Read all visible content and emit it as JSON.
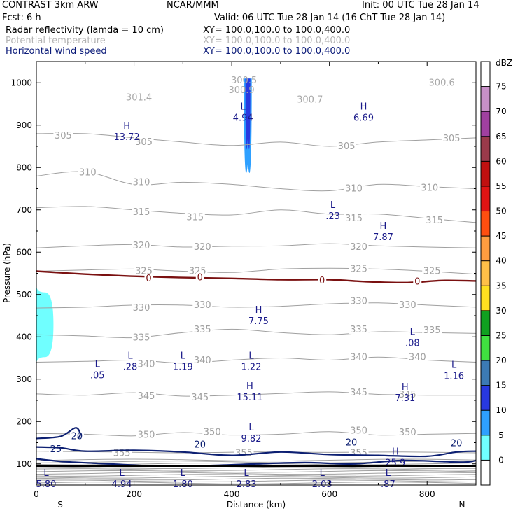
{
  "header": {
    "model": "CONTRAST  3km ARW",
    "source": "NCAR/MMM",
    "init": "Init: 00 UTC Tue 28 Jan 14",
    "fcst": "Fcst:      6 h",
    "valid": "Valid: 06 UTC Tue 28 Jan 14 (16 ChT Tue 28 Jan 14)",
    "fields": [
      {
        "name": "Radar reflectivity (lamda = 10 cm)",
        "xy": "XY= 100.0,100.0 to 100.0,400.0",
        "color": "#000000"
      },
      {
        "name": "Potential temperature",
        "xy": "XY= 100.0,100.0 to 100.0,400.0",
        "color": "#b4b4b4"
      },
      {
        "name": "Horizontal wind speed",
        "xy": "XY= 100.0,100.0 to 100.0,400.0",
        "color": "#0a1a78"
      }
    ]
  },
  "colors": {
    "theta": "#a0a0a0",
    "wind": "#0c1f72",
    "freezing": "#7a1010",
    "hl": "#1a1a8a",
    "hl_gray": "#a8a8a8"
  },
  "chart_data": {
    "type": "cross-section",
    "xlabel": "Distance (km)",
    "ylabel": "Pressure (hPa)",
    "xlim": [
      0,
      900
    ],
    "ylim": [
      1050,
      50
    ],
    "x_ticks": [
      0,
      200,
      400,
      600,
      800
    ],
    "y_ticks": [
      100,
      200,
      300,
      400,
      500,
      600,
      700,
      800,
      900,
      1000
    ],
    "left_end_label": "S",
    "right_end_label": "N",
    "colorbar": {
      "title": "dBZ",
      "levels": [
        "75",
        "70",
        "65",
        "60",
        "55",
        "50",
        "45",
        "40",
        "35",
        "30",
        "25",
        "20",
        "15",
        "10",
        "5",
        "0"
      ],
      "colors": [
        "#ffffff",
        "#c890c8",
        "#a040a0",
        "#9a3a4a",
        "#c01010",
        "#e01414",
        "#ff4e10",
        "#ff9d40",
        "#ffc048",
        "#ffe020",
        "#10a020",
        "#40e040",
        "#3c7ab4",
        "#2838e0",
        "#2ea0ff",
        "#70ffff",
        "#ffffff"
      ]
    },
    "theta_contours": [
      {
        "value": 355,
        "points": [
          [
            0,
            130
          ],
          [
            150,
            128
          ],
          [
            300,
            126
          ],
          [
            450,
            128
          ],
          [
            600,
            127
          ],
          [
            750,
            128
          ],
          [
            900,
            126
          ]
        ],
        "labels": [
          [
            175,
            125
          ],
          [
            425,
            125
          ],
          [
            660,
            125
          ]
        ]
      },
      {
        "value": 350,
        "points": [
          [
            0,
            172
          ],
          [
            100,
            170
          ],
          [
            200,
            166
          ],
          [
            300,
            174
          ],
          [
            400,
            168
          ],
          [
            500,
            170
          ],
          [
            600,
            176
          ],
          [
            700,
            168
          ],
          [
            800,
            170
          ],
          [
            900,
            172
          ]
        ],
        "labels": [
          [
            225,
            168
          ],
          [
            360,
            175
          ],
          [
            660,
            178
          ],
          [
            760,
            174
          ]
        ]
      },
      {
        "value": 345,
        "points": [
          [
            0,
            265
          ],
          [
            100,
            262
          ],
          [
            200,
            268
          ],
          [
            300,
            260
          ],
          [
            400,
            262
          ],
          [
            500,
            266
          ],
          [
            600,
            270
          ],
          [
            700,
            264
          ],
          [
            800,
            262
          ],
          [
            900,
            262
          ]
        ],
        "labels": [
          [
            225,
            260
          ],
          [
            335,
            257
          ],
          [
            660,
            268
          ],
          [
            760,
            263
          ]
        ]
      },
      {
        "value": 340,
        "points": [
          [
            0,
            340
          ],
          [
            100,
            342
          ],
          [
            200,
            345
          ],
          [
            300,
            338
          ],
          [
            400,
            345
          ],
          [
            500,
            350
          ],
          [
            600,
            345
          ],
          [
            700,
            352
          ],
          [
            800,
            345
          ],
          [
            900,
            340
          ]
        ],
        "labels": [
          [
            225,
            335
          ],
          [
            340,
            344
          ],
          [
            660,
            352
          ],
          [
            780,
            352
          ]
        ]
      },
      {
        "value": 335,
        "points": [
          [
            0,
            405
          ],
          [
            100,
            402
          ],
          [
            200,
            398
          ],
          [
            300,
            410
          ],
          [
            400,
            418
          ],
          [
            500,
            410
          ],
          [
            600,
            405
          ],
          [
            700,
            412
          ],
          [
            800,
            410
          ],
          [
            900,
            408
          ]
        ],
        "labels": [
          [
            215,
            398
          ],
          [
            340,
            417
          ],
          [
            660,
            417
          ],
          [
            810,
            415
          ]
        ]
      },
      {
        "value": 330,
        "points": [
          [
            0,
            468
          ],
          [
            100,
            470
          ],
          [
            200,
            475
          ],
          [
            300,
            475
          ],
          [
            400,
            470
          ],
          [
            500,
            472
          ],
          [
            600,
            478
          ],
          [
            700,
            480
          ],
          [
            800,
            475
          ],
          [
            900,
            470
          ]
        ],
        "labels": [
          [
            215,
            468
          ],
          [
            340,
            475
          ],
          [
            660,
            484
          ],
          [
            760,
            475
          ]
        ]
      },
      {
        "value": 325,
        "points": [
          [
            0,
            555
          ],
          [
            100,
            558
          ],
          [
            200,
            560
          ],
          [
            300,
            555
          ],
          [
            400,
            552
          ],
          [
            500,
            560
          ],
          [
            600,
            562
          ],
          [
            700,
            560
          ],
          [
            800,
            555
          ],
          [
            900,
            548
          ]
        ],
        "labels": [
          [
            220,
            555
          ],
          [
            330,
            555
          ],
          [
            660,
            560
          ],
          [
            810,
            555
          ]
        ]
      },
      {
        "value": 320,
        "points": [
          [
            0,
            610
          ],
          [
            100,
            615
          ],
          [
            200,
            618
          ],
          [
            300,
            612
          ],
          [
            400,
            614
          ],
          [
            500,
            615
          ],
          [
            600,
            620
          ],
          [
            700,
            615
          ],
          [
            800,
            612
          ],
          [
            900,
            610
          ]
        ],
        "labels": [
          [
            215,
            615
          ],
          [
            340,
            612
          ],
          [
            660,
            612
          ]
        ]
      },
      {
        "value": 315,
        "points": [
          [
            0,
            705
          ],
          [
            100,
            708
          ],
          [
            200,
            700
          ],
          [
            300,
            692
          ],
          [
            400,
            688
          ],
          [
            500,
            700
          ],
          [
            600,
            690
          ],
          [
            700,
            690
          ],
          [
            800,
            680
          ],
          [
            900,
            670
          ]
        ],
        "labels": [
          [
            215,
            695
          ],
          [
            325,
            682
          ],
          [
            650,
            680
          ],
          [
            815,
            675
          ]
        ]
      },
      {
        "value": 310,
        "points": [
          [
            0,
            780
          ],
          [
            100,
            790
          ],
          [
            200,
            760
          ],
          [
            300,
            765
          ],
          [
            400,
            760
          ],
          [
            500,
            750
          ],
          [
            600,
            745
          ],
          [
            700,
            760
          ],
          [
            800,
            755
          ],
          [
            900,
            750
          ]
        ],
        "labels": [
          [
            215,
            765
          ],
          [
            105,
            788
          ],
          [
            650,
            750
          ],
          [
            805,
            752
          ]
        ]
      },
      {
        "value": 305,
        "points": [
          [
            0,
            880
          ],
          [
            100,
            880
          ],
          [
            200,
            870
          ],
          [
            300,
            860
          ],
          [
            400,
            852
          ],
          [
            500,
            860
          ],
          [
            600,
            850
          ],
          [
            700,
            860
          ],
          [
            800,
            865
          ],
          [
            900,
            870
          ]
        ],
        "labels": [
          [
            55,
            875
          ],
          [
            220,
            860
          ],
          [
            635,
            850
          ],
          [
            850,
            868
          ]
        ]
      }
    ],
    "theta_labels_extra": [
      {
        "text": "301.4",
        "x": 210,
        "y": 965
      },
      {
        "text": "300.9",
        "x": 420,
        "y": 982
      },
      {
        "text": "300.7",
        "x": 560,
        "y": 960
      },
      {
        "text": "300.5",
        "x": 425,
        "y": 1005
      },
      {
        "text": "300.6",
        "x": 830,
        "y": 1000
      }
    ],
    "wind_contours": [
      {
        "value": 25,
        "points": [
          [
            0,
            112
          ],
          [
            60,
            105
          ],
          [
            150,
            100
          ],
          [
            250,
            95
          ],
          [
            350,
            96
          ],
          [
            450,
            100
          ],
          [
            550,
            103
          ],
          [
            650,
            100
          ],
          [
            750,
            108
          ],
          [
            870,
            104
          ],
          [
            900,
            108
          ]
        ],
        "labels": [
          [
            40,
            134
          ]
        ]
      },
      {
        "value": 20,
        "points": [
          [
            0,
            140
          ],
          [
            50,
            138
          ],
          [
            100,
            130
          ],
          [
            200,
            132
          ],
          [
            300,
            128
          ],
          [
            400,
            120
          ],
          [
            500,
            128
          ],
          [
            600,
            122
          ],
          [
            700,
            120
          ],
          [
            800,
            118
          ],
          [
            860,
            128
          ],
          [
            900,
            130
          ]
        ],
        "labels": [
          [
            335,
            145
          ],
          [
            645,
            150
          ],
          [
            860,
            148
          ],
          [
            83,
            165
          ]
        ]
      },
      {
        "value": 20,
        "points": [
          [
            0,
            160
          ],
          [
            50,
            165
          ],
          [
            80,
            185
          ],
          [
            90,
            170
          ],
          [
            85,
            160
          ]
        ],
        "labels": []
      }
    ],
    "freezing_level": {
      "value": 0,
      "points": [
        [
          0,
          555
        ],
        [
          100,
          548
        ],
        [
          200,
          543
        ],
        [
          300,
          540
        ],
        [
          400,
          538
        ],
        [
          500,
          535
        ],
        [
          600,
          535
        ],
        [
          680,
          530
        ],
        [
          760,
          528
        ],
        [
          830,
          533
        ],
        [
          900,
          532
        ]
      ],
      "labels": [
        [
          230,
          538
        ],
        [
          335,
          540
        ],
        [
          585,
          533
        ],
        [
          780,
          530
        ]
      ]
    },
    "reflectivity": [
      {
        "dbz": 5,
        "shape": "left-blob",
        "x": [
          0,
          35
        ],
        "p": [
          352,
          505
        ]
      },
      {
        "dbz": 10,
        "shape": "column",
        "x": [
          425,
          441
        ],
        "p": [
          810,
          1010
        ]
      },
      {
        "dbz": 15,
        "shape": "column",
        "x": [
          428,
          438
        ],
        "p": [
          870,
          1010
        ]
      }
    ],
    "hl_labels": [
      {
        "letter": "L",
        "value": "5.80",
        "x": 20,
        "y": 65
      },
      {
        "letter": "L",
        "value": "4.94",
        "x": 175,
        "y": 65
      },
      {
        "letter": "L",
        "value": "1.80",
        "x": 300,
        "y": 65
      },
      {
        "letter": "L",
        "value": "2.83",
        "x": 430,
        "y": 65
      },
      {
        "letter": "L",
        "value": "2.03",
        "x": 585,
        "y": 65
      },
      {
        "letter": "L",
        "value": ".87",
        "x": 720,
        "y": 65
      },
      {
        "letter": "H",
        "value": "25.9",
        "x": 735,
        "y": 115
      },
      {
        "letter": "L",
        "value": "9.82",
        "x": 440,
        "y": 172
      },
      {
        "letter": "H",
        "value": "15.11",
        "x": 437,
        "y": 270
      },
      {
        "letter": "H",
        "value": "7.31",
        "x": 755,
        "y": 268
      },
      {
        "letter": "L",
        "value": ".05",
        "x": 125,
        "y": 322
      },
      {
        "letter": "L",
        "value": ".28",
        "x": 192,
        "y": 342
      },
      {
        "letter": "L",
        "value": "1.19",
        "x": 300,
        "y": 342
      },
      {
        "letter": "L",
        "value": "1.22",
        "x": 440,
        "y": 342
      },
      {
        "letter": "L",
        "value": "1.16",
        "x": 855,
        "y": 320
      },
      {
        "letter": "L",
        "value": ".08",
        "x": 770,
        "y": 398
      },
      {
        "letter": "H",
        "value": "7.75",
        "x": 455,
        "y": 450
      },
      {
        "letter": "H",
        "value": "7.87",
        "x": 710,
        "y": 648
      },
      {
        "letter": "L",
        "value": ".23",
        "x": 607,
        "y": 698
      },
      {
        "letter": "H",
        "value": "13.72",
        "x": 185,
        "y": 885
      },
      {
        "letter": "L",
        "value": "4.94",
        "x": 423,
        "y": 930
      },
      {
        "letter": "H",
        "value": "6.69",
        "x": 670,
        "y": 930
      }
    ]
  }
}
